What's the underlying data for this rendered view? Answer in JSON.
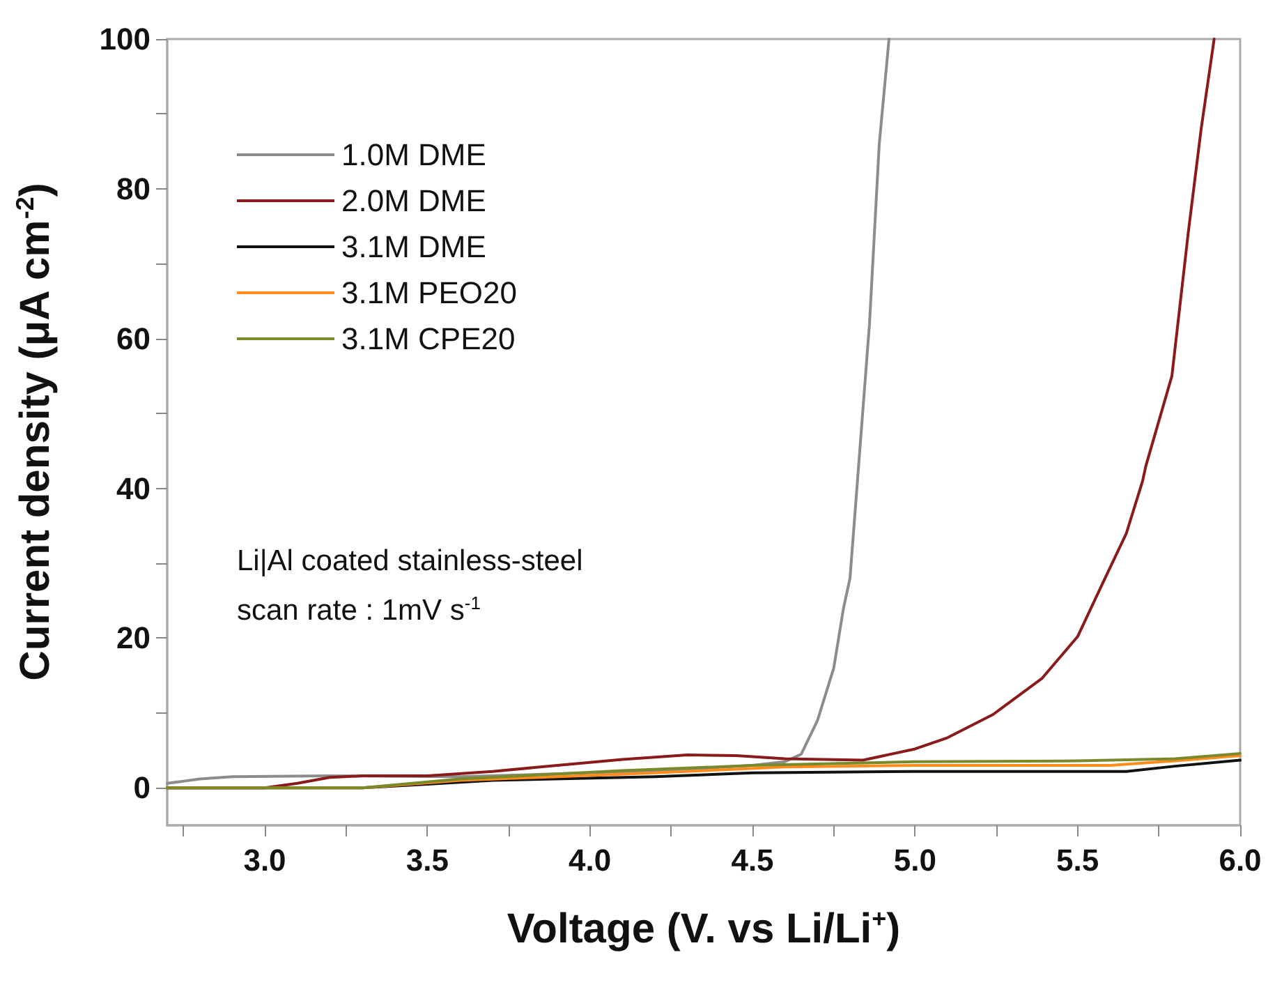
{
  "chart_data": {
    "type": "line",
    "xlabel": "Voltage (V. vs Li/Li$^{+}$)",
    "ylabel": "Current density (μA cm$^{-2}$)",
    "annotations": [
      "Li|Al coated stainless-steel",
      "scan rate : 1mV s$^{-1}$"
    ],
    "xlim": [
      2.7,
      6.0
    ],
    "xticks": [
      {
        "value": 2.75,
        "label": null
      },
      {
        "value": 3.0,
        "label": "3.0"
      },
      {
        "value": 3.25,
        "label": null
      },
      {
        "value": 3.5,
        "label": "3.5"
      },
      {
        "value": 3.75,
        "label": null
      },
      {
        "value": 4.0,
        "label": "4.0"
      },
      {
        "value": 4.25,
        "label": null
      },
      {
        "value": 4.5,
        "label": "4.5"
      },
      {
        "value": 4.75,
        "label": null
      },
      {
        "value": 5.0,
        "label": "5.0"
      },
      {
        "value": 5.25,
        "label": null
      },
      {
        "value": 5.5,
        "label": "5.5"
      },
      {
        "value": 5.75,
        "label": null
      },
      {
        "value": 6.0,
        "label": "6.0"
      }
    ],
    "ylim": [
      -5,
      100
    ],
    "yticks": [
      0,
      {
        "value": 10,
        "label": null
      },
      20,
      {
        "value": 30,
        "label": null
      },
      40,
      {
        "value": 50,
        "label": null
      },
      60,
      {
        "value": 70,
        "label": null
      },
      80,
      {
        "value": 90,
        "label": null
      },
      100
    ],
    "grid": false,
    "legend": "top left",
    "marker": "none",
    "line_style": "solid",
    "series": [
      {
        "name": "1.0M DME",
        "color": "#8c8c8c",
        "x": [
          2.7,
          2.8,
          2.9,
          3.2,
          3.6,
          4.0,
          4.3,
          4.5,
          4.6,
          4.65,
          4.7,
          4.75,
          4.78,
          4.8,
          4.83,
          4.86,
          4.89,
          4.92
        ],
        "values": [
          0.6,
          1.2,
          1.5,
          1.6,
          1.5,
          2.0,
          2.5,
          3.0,
          3.5,
          4.5,
          9,
          16,
          24,
          28,
          45,
          62,
          86,
          100
        ]
      },
      {
        "name": "2.0M DME",
        "color": "#8b1a1a",
        "x": [
          2.7,
          3.0,
          3.1,
          3.2,
          3.3,
          3.5,
          3.7,
          3.9,
          4.1,
          4.3,
          4.45,
          4.6,
          4.84,
          5.0,
          5.1,
          5.24,
          5.39,
          5.5,
          5.58,
          5.65,
          5.7,
          5.71,
          5.75,
          5.79,
          5.84,
          5.88,
          5.92
        ],
        "values": [
          0,
          0,
          0.6,
          1.4,
          1.6,
          1.6,
          2.2,
          3.0,
          3.8,
          4.4,
          4.3,
          3.9,
          3.7,
          5.2,
          6.7,
          9.8,
          14.6,
          20.2,
          27.6,
          34,
          41,
          43,
          49,
          55,
          74,
          88,
          100
        ]
      },
      {
        "name": "3.1M DME",
        "color": "#111111",
        "x": [
          2.7,
          3.3,
          3.5,
          3.7,
          4.2,
          4.5,
          5.0,
          5.65,
          5.8,
          6.0
        ],
        "values": [
          0,
          0,
          0.5,
          1.0,
          1.5,
          2.0,
          2.2,
          2.2,
          2.9,
          3.7
        ]
      },
      {
        "name": "3.1M PEO20",
        "color": "#ff8c1a",
        "x": [
          2.7,
          3.3,
          3.6,
          4.2,
          4.6,
          5.0,
          5.6,
          5.8,
          6.0
        ],
        "values": [
          0,
          0,
          1.0,
          2.0,
          2.8,
          3.0,
          3.0,
          3.6,
          4.3
        ]
      },
      {
        "name": "3.1M CPE20",
        "color": "#7a8a2a",
        "x": [
          2.7,
          3.3,
          3.6,
          4.1,
          4.5,
          5.0,
          5.5,
          5.8,
          6.0
        ],
        "values": [
          0,
          0,
          1.2,
          2.3,
          3.0,
          3.5,
          3.6,
          3.9,
          4.6
        ]
      }
    ]
  }
}
